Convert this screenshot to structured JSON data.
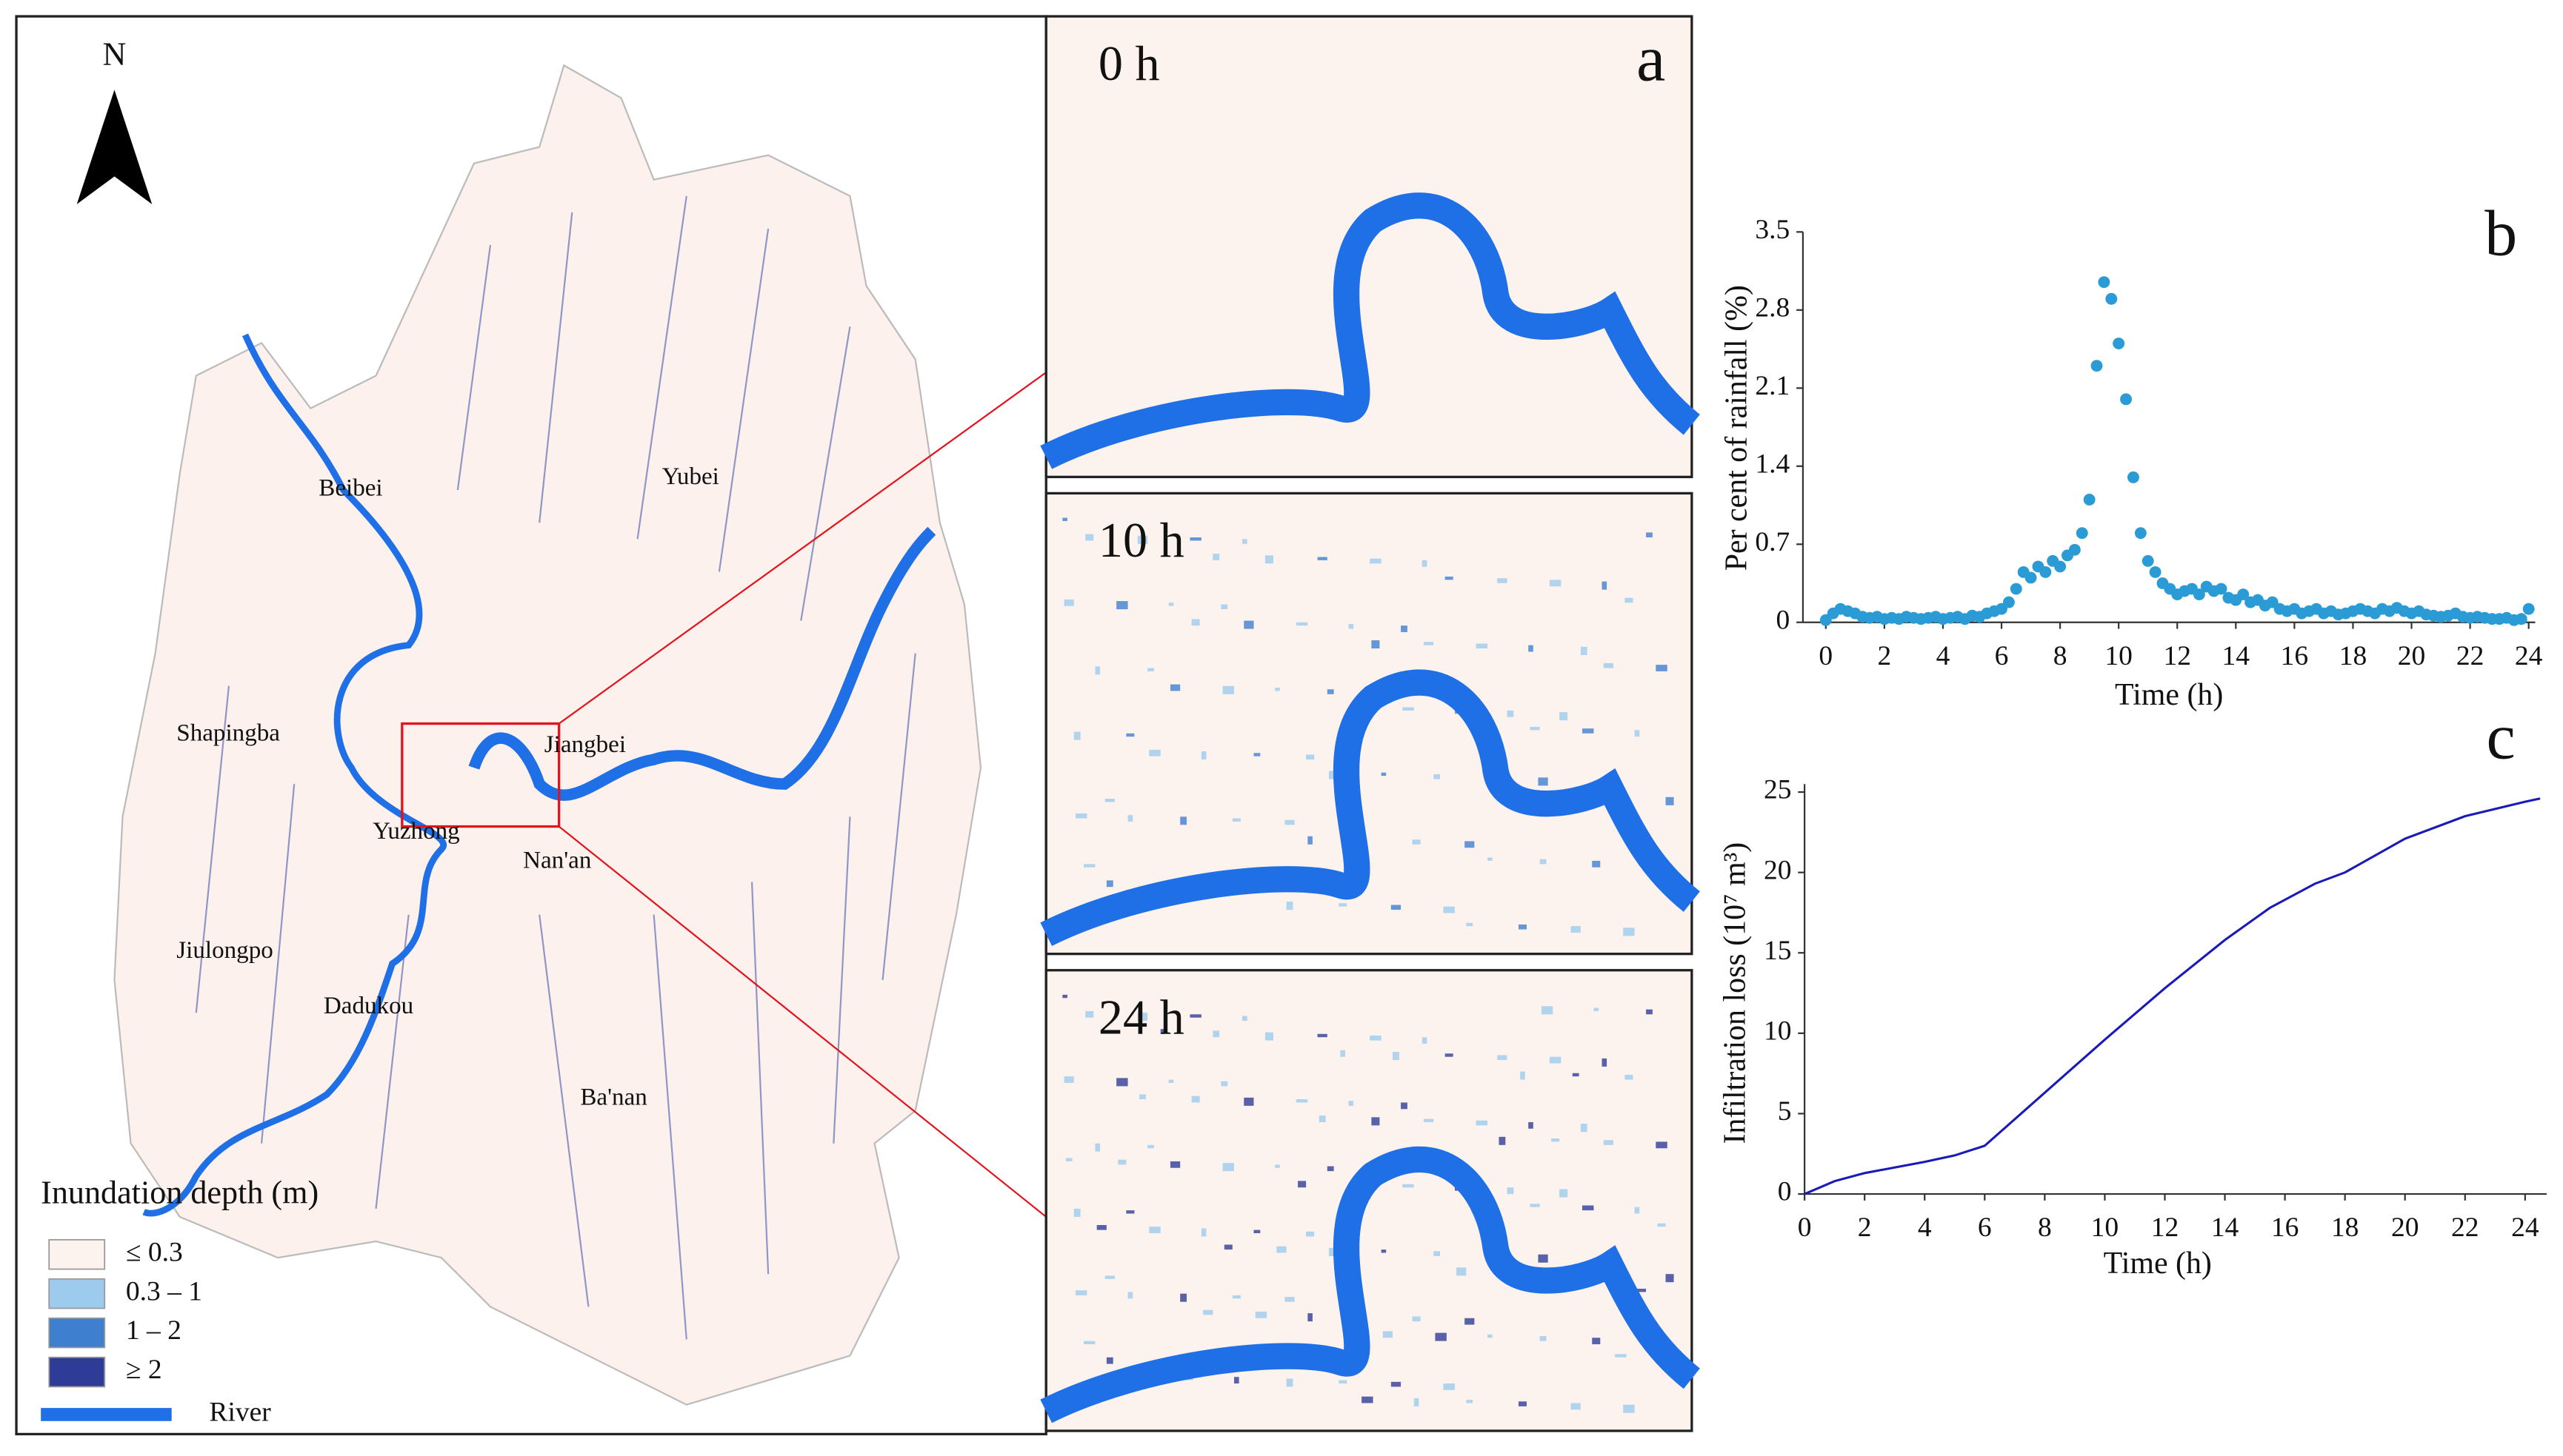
{
  "map": {
    "north": "N",
    "legend": {
      "title": "Inundation depth (m)",
      "items": [
        {
          "label": "≤  0.3",
          "color": "#fdf3ee"
        },
        {
          "label": "0.3 – 1",
          "color": "#9ccbee"
        },
        {
          "label": "1 – 2",
          "color": "#3f7fd0"
        },
        {
          "label": "≥ 2",
          "color": "#2f3c97"
        },
        {
          "label": "River",
          "color": "#1f6fe6"
        }
      ]
    },
    "places": [
      "Beibei",
      "Yubei",
      "Shapingba",
      "Jiangbei",
      "Yuzhong",
      "Nan'an",
      "Jiulongpo",
      "Dadukou",
      "Ba'nan"
    ]
  },
  "panels": [
    {
      "label": "0 h"
    },
    {
      "label": "10 h"
    },
    {
      "label": "24 h"
    }
  ],
  "letters": [
    "a",
    "b",
    "c"
  ],
  "chart_data": [
    {
      "type": "scatter",
      "color": "#2a9bd4",
      "xlabel": "Time (h)",
      "ylabel": "Per cent of rainfall (%)",
      "xlim": [
        0,
        24
      ],
      "ylim": [
        0,
        3.5
      ],
      "xticks": [
        0,
        2,
        4,
        6,
        8,
        10,
        12,
        14,
        16,
        18,
        20,
        22,
        24
      ],
      "yticks": [
        0,
        0.7,
        1.4,
        2.1,
        2.8,
        3.5
      ],
      "x": [
        0,
        0.25,
        0.5,
        0.75,
        1,
        1.25,
        1.5,
        1.75,
        2,
        2.25,
        2.5,
        2.75,
        3,
        3.25,
        3.5,
        3.75,
        4,
        4.25,
        4.5,
        4.75,
        5,
        5.25,
        5.5,
        5.75,
        6,
        6.25,
        6.5,
        6.75,
        7,
        7.25,
        7.5,
        7.75,
        8,
        8.25,
        8.5,
        8.75,
        9,
        9.25,
        9.5,
        9.75,
        10,
        10.25,
        10.5,
        10.75,
        11,
        11.25,
        11.5,
        11.75,
        12,
        12.25,
        12.5,
        12.75,
        13,
        13.25,
        13.5,
        13.75,
        14,
        14.25,
        14.5,
        14.75,
        15,
        15.25,
        15.5,
        15.75,
        16,
        16.25,
        16.5,
        16.75,
        17,
        17.25,
        17.5,
        17.75,
        18,
        18.25,
        18.5,
        18.75,
        19,
        19.25,
        19.5,
        19.75,
        20,
        20.25,
        20.5,
        20.75,
        21,
        21.25,
        21.5,
        21.75,
        22,
        22.25,
        22.5,
        22.75,
        23,
        23.25,
        23.5,
        23.75,
        24
      ],
      "values": [
        0.02,
        0.08,
        0.12,
        0.1,
        0.08,
        0.05,
        0.04,
        0.05,
        0.03,
        0.04,
        0.03,
        0.05,
        0.04,
        0.03,
        0.04,
        0.05,
        0.03,
        0.04,
        0.05,
        0.03,
        0.06,
        0.05,
        0.08,
        0.1,
        0.12,
        0.18,
        0.3,
        0.45,
        0.4,
        0.5,
        0.45,
        0.55,
        0.5,
        0.6,
        0.65,
        0.8,
        1.1,
        2.3,
        3.05,
        2.9,
        2.5,
        2.0,
        1.3,
        0.8,
        0.55,
        0.45,
        0.35,
        0.3,
        0.25,
        0.28,
        0.3,
        0.25,
        0.32,
        0.28,
        0.3,
        0.22,
        0.2,
        0.25,
        0.18,
        0.2,
        0.15,
        0.18,
        0.12,
        0.1,
        0.12,
        0.08,
        0.1,
        0.12,
        0.08,
        0.1,
        0.07,
        0.08,
        0.1,
        0.12,
        0.1,
        0.08,
        0.12,
        0.1,
        0.13,
        0.1,
        0.08,
        0.1,
        0.07,
        0.06,
        0.05,
        0.06,
        0.08,
        0.05,
        0.04,
        0.05,
        0.04,
        0.03,
        0.03,
        0.04,
        0.02,
        0.03,
        0.12
      ]
    },
    {
      "type": "line",
      "color": "#1a1ab8",
      "xlabel": "Time (h)",
      "ylabel": "Infiltration loss (10⁷ m³)",
      "xlim": [
        0,
        24.5
      ],
      "ylim": [
        0,
        25.5
      ],
      "xticks": [
        0,
        2,
        4,
        6,
        8,
        10,
        12,
        14,
        16,
        18,
        20,
        22,
        24
      ],
      "yticks": [
        0,
        5,
        10,
        15,
        20,
        25
      ],
      "x": [
        0,
        1,
        2,
        4,
        5,
        6,
        8,
        10,
        12,
        14,
        15.5,
        17,
        18,
        20,
        22,
        24,
        24.5
      ],
      "values": [
        0,
        0.8,
        1.3,
        2.0,
        2.4,
        3.0,
        6.3,
        9.6,
        12.8,
        15.8,
        17.8,
        19.3,
        20,
        22.1,
        23.5,
        24.4,
        24.6
      ]
    }
  ]
}
